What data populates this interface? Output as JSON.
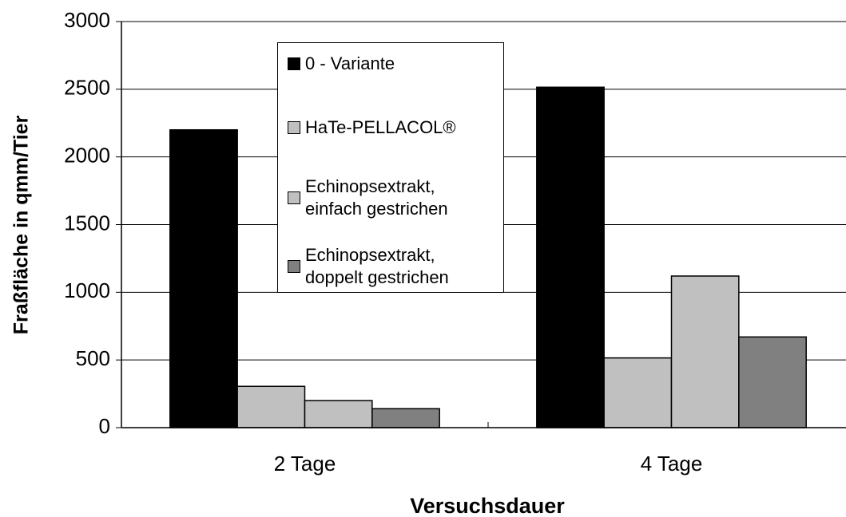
{
  "chart_data": {
    "type": "bar",
    "x_label": "Versuchsdauer",
    "y_label": "Fraßfläche in qmm/Tier",
    "categories": [
      "2 Tage",
      "4 Tage"
    ],
    "series": [
      {
        "name": "0 - Variante",
        "color": "#000000",
        "values": [
          2200,
          2515
        ]
      },
      {
        "name": "HaTe-PELLACOL®",
        "color": "#c0c0c0",
        "values": [
          305,
          515
        ]
      },
      {
        "name": "Echinopsextrakt, einfach gestrichen",
        "color": "#c0c0c0",
        "values": [
          200,
          1120
        ]
      },
      {
        "name": "Echinopsextrakt, doppelt gestrichen",
        "color": "#808080",
        "values": [
          140,
          670
        ]
      }
    ],
    "ylim": [
      0,
      3000
    ],
    "yticks": [
      0,
      500,
      1000,
      1500,
      2000,
      2500,
      3000
    ],
    "grid": true
  }
}
